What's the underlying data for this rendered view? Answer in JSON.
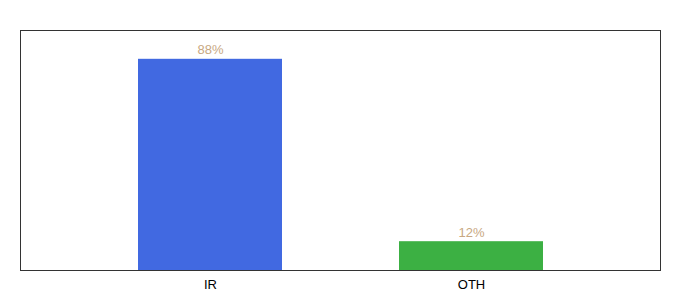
{
  "chart_data": {
    "type": "bar",
    "categories": [
      "IR",
      "OTH"
    ],
    "values": [
      88,
      12
    ],
    "value_labels": [
      "88%",
      "12%"
    ],
    "colors": [
      "#4169e1",
      "#3cb043"
    ],
    "ylim": [
      0,
      100
    ],
    "yticks": [],
    "data_labels": true,
    "tick_labels": "x",
    "grid": false
  }
}
